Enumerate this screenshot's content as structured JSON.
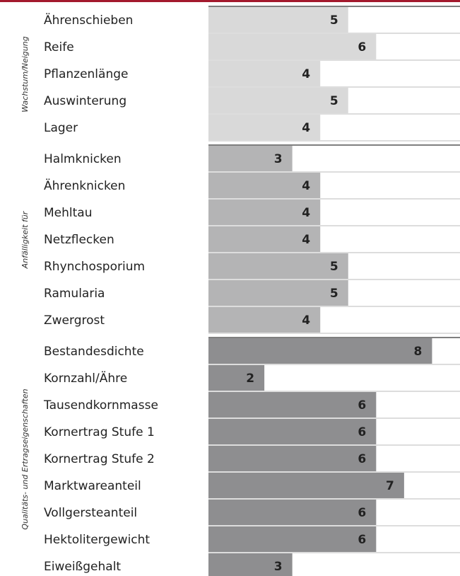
{
  "chart_data": {
    "type": "bar",
    "xlim": [
      0,
      9
    ],
    "groups": [
      {
        "label": "Wachstum/Neigung",
        "color": "#d9d9d9",
        "categories": [
          "Ährenschieben",
          "Reife",
          "Pflanzenlänge",
          "Auswinterung",
          "Lager"
        ],
        "values": [
          5,
          6,
          4,
          5,
          4
        ]
      },
      {
        "label": "Anfälligkeit für",
        "color": "#b4b4b5",
        "categories": [
          "Halmknicken",
          "Ährenknicken",
          "Mehltau",
          "Netzflecken",
          "Rhynchosporium",
          "Ramularia",
          "Zwergrost"
        ],
        "values": [
          3,
          4,
          4,
          4,
          5,
          5,
          4
        ]
      },
      {
        "label": "Qualitäts- und Ertragseigenschaften",
        "color": "#8e8e90",
        "categories": [
          "Bestandesdichte",
          "Kornzahl/Ähre",
          "Tausendkornmasse",
          "Kornertrag Stufe 1",
          "Kornertrag Stufe 2",
          "Marktwareanteil",
          "Vollgersteanteil",
          "Hektolitergewicht",
          "Eiweißgehalt"
        ],
        "values": [
          8,
          2,
          6,
          6,
          6,
          7,
          6,
          6,
          3
        ]
      }
    ]
  }
}
